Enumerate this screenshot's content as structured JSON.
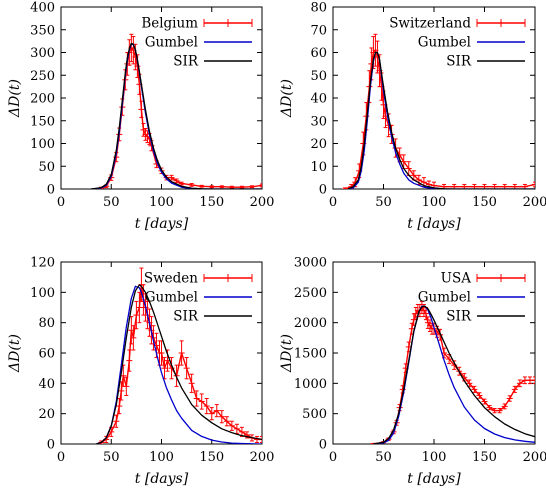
{
  "figure": {
    "xtick_labels": [
      "0",
      "50",
      "100",
      "150",
      "200"
    ]
  },
  "chart_data": [
    {
      "type": "line",
      "xlabel": "t [days]",
      "ylabel": "ΔD(t)",
      "xlim": [
        0,
        200
      ],
      "ylim": [
        0,
        400
      ],
      "xticks": [
        0,
        50,
        100,
        150,
        200
      ],
      "yticks": [
        0,
        50,
        100,
        150,
        200,
        250,
        300,
        350,
        400
      ],
      "ytick_labels": [
        "0",
        "50",
        "100",
        "150",
        "200",
        "250",
        "300",
        "350",
        "400"
      ],
      "legend_position": "top-right",
      "series": [
        {
          "name": "Belgium",
          "kind": "data-errorbars",
          "color": "#ff0000",
          "x": [
            40,
            45,
            50,
            55,
            58,
            61,
            64,
            66,
            68,
            70,
            72,
            74,
            76,
            78,
            80,
            82,
            84,
            86,
            88,
            90,
            95,
            100,
            105,
            110,
            115,
            120,
            130,
            140,
            150,
            160,
            170,
            180,
            190,
            200
          ],
          "y": [
            2,
            6,
            25,
            70,
            120,
            180,
            240,
            275,
            300,
            310,
            305,
            290,
            270,
            230,
            175,
            130,
            120,
            115,
            110,
            95,
            55,
            40,
            25,
            25,
            18,
            12,
            9,
            6,
            5,
            5,
            4,
            4,
            5,
            8
          ],
          "err": [
            2,
            3,
            6,
            10,
            14,
            18,
            22,
            25,
            28,
            30,
            30,
            28,
            25,
            22,
            18,
            14,
            13,
            13,
            12,
            11,
            8,
            6,
            5,
            5,
            4,
            3,
            3,
            2,
            2,
            2,
            2,
            2,
            2,
            3
          ]
        },
        {
          "name": "Gumbel",
          "kind": "curve",
          "color": "#0000cc",
          "x": [
            30,
            40,
            45,
            50,
            55,
            58,
            61,
            64,
            66,
            68,
            70,
            72,
            74,
            76,
            78,
            80,
            84,
            88,
            92,
            96,
            100,
            105,
            110,
            120,
            130,
            140,
            150,
            200
          ],
          "y": [
            0,
            2,
            8,
            28,
            78,
            125,
            185,
            250,
            282,
            305,
            318,
            318,
            305,
            282,
            255,
            225,
            168,
            120,
            83,
            56,
            37,
            22,
            13,
            4,
            1,
            0.3,
            0,
            0
          ]
        },
        {
          "name": "SIR",
          "kind": "curve",
          "color": "#000000",
          "x": [
            30,
            40,
            45,
            50,
            55,
            58,
            61,
            64,
            66,
            68,
            70,
            72,
            74,
            76,
            78,
            80,
            84,
            88,
            92,
            96,
            100,
            105,
            110,
            120,
            130,
            140,
            150,
            200
          ],
          "y": [
            0,
            3,
            10,
            32,
            85,
            135,
            195,
            255,
            288,
            308,
            320,
            318,
            305,
            285,
            258,
            230,
            175,
            127,
            90,
            62,
            42,
            26,
            16,
            6,
            2,
            0.5,
            0,
            0
          ]
        }
      ]
    },
    {
      "type": "line",
      "xlabel": "t [days]",
      "ylabel": "ΔD(t)",
      "xlim": [
        0,
        200
      ],
      "ylim": [
        0,
        80
      ],
      "xticks": [
        0,
        50,
        100,
        150,
        200
      ],
      "yticks": [
        0,
        10,
        20,
        30,
        40,
        50,
        60,
        70,
        80
      ],
      "ytick_labels": [
        "0",
        "10",
        "20",
        "30",
        "40",
        "50",
        "60",
        "70",
        "80"
      ],
      "legend_position": "top-right",
      "series": [
        {
          "name": "Switzerland",
          "kind": "data-errorbars",
          "color": "#ff0000",
          "x": [
            12,
            18,
            22,
            26,
            30,
            33,
            36,
            38,
            40,
            42,
            44,
            46,
            48,
            50,
            52,
            55,
            58,
            62,
            66,
            70,
            75,
            80,
            85,
            90,
            95,
            100,
            110,
            120,
            130,
            140,
            150,
            160,
            170,
            180,
            190,
            200
          ],
          "y": [
            0,
            1,
            3,
            8,
            20,
            32,
            45,
            55,
            60,
            61,
            58,
            52,
            45,
            37,
            32,
            28,
            24,
            18,
            15,
            12,
            9,
            6,
            4,
            3,
            2,
            1.5,
            1,
            1,
            1,
            1,
            1,
            1,
            1,
            1,
            1,
            2
          ],
          "err": [
            0.5,
            1,
            2,
            3,
            5,
            6,
            7,
            7,
            7,
            7,
            7,
            7,
            6,
            6,
            5,
            5,
            4,
            4,
            3,
            3,
            3,
            2,
            2,
            2,
            1.5,
            1.5,
            1,
            1,
            1,
            1,
            1,
            1,
            1,
            1,
            1,
            1
          ]
        },
        {
          "name": "Gumbel",
          "kind": "curve",
          "color": "#0000cc",
          "x": [
            15,
            20,
            25,
            28,
            31,
            34,
            37,
            40,
            42,
            44,
            46,
            48,
            50,
            54,
            58,
            62,
            66,
            70,
            75,
            80,
            90,
            100,
            110,
            120,
            200
          ],
          "y": [
            0,
            0.5,
            3,
            8,
            17,
            30,
            45,
            56,
            60,
            60,
            57,
            50,
            43,
            32,
            23,
            16,
            11,
            7,
            4,
            2.5,
            0.8,
            0.2,
            0,
            0,
            0
          ]
        },
        {
          "name": "SIR",
          "kind": "curve",
          "color": "#000000",
          "x": [
            15,
            20,
            25,
            28,
            31,
            34,
            37,
            40,
            42,
            44,
            46,
            48,
            50,
            54,
            58,
            62,
            66,
            70,
            75,
            80,
            90,
            100,
            110,
            120,
            200
          ],
          "y": [
            0,
            1,
            4,
            10,
            20,
            33,
            47,
            57,
            60,
            60,
            57,
            51,
            45,
            34,
            25,
            18,
            13,
            9,
            6,
            4,
            1.5,
            0.5,
            0.1,
            0,
            0
          ]
        }
      ]
    },
    {
      "type": "line",
      "xlabel": "t [days]",
      "ylabel": "ΔD(t)",
      "xlim": [
        0,
        200
      ],
      "ylim": [
        0,
        120
      ],
      "xticks": [
        0,
        50,
        100,
        150,
        200
      ],
      "yticks": [
        0,
        20,
        40,
        60,
        80,
        100,
        120
      ],
      "ytick_labels": [
        "0",
        "20",
        "40",
        "60",
        "80",
        "100",
        "120"
      ],
      "legend_position": "top-right",
      "series": [
        {
          "name": "Sweden",
          "kind": "data-errorbars",
          "color": "#ff0000",
          "x": [
            40,
            45,
            50,
            55,
            58,
            60,
            62,
            65,
            68,
            70,
            72,
            75,
            78,
            80,
            82,
            84,
            86,
            88,
            90,
            92,
            95,
            98,
            100,
            103,
            106,
            110,
            115,
            120,
            125,
            130,
            135,
            140,
            145,
            150,
            155,
            160,
            165,
            170,
            175,
            180,
            185,
            190,
            195,
            200
          ],
          "y": [
            1,
            3,
            8,
            15,
            25,
            35,
            45,
            38,
            55,
            75,
            70,
            85,
            90,
            105,
            95,
            90,
            85,
            80,
            75,
            70,
            65,
            60,
            60,
            50,
            55,
            50,
            45,
            60,
            50,
            40,
            30,
            28,
            25,
            20,
            22,
            18,
            15,
            12,
            10,
            8,
            6,
            4,
            3,
            3
          ],
          "err": [
            1,
            2,
            3,
            4,
            5,
            6,
            7,
            6,
            7,
            9,
            8,
            9,
            10,
            11,
            10,
            9,
            9,
            9,
            9,
            8,
            8,
            8,
            8,
            7,
            7,
            7,
            7,
            8,
            7,
            6,
            5,
            5,
            5,
            4,
            4,
            4,
            3,
            3,
            3,
            3,
            2,
            2,
            2,
            2
          ]
        },
        {
          "name": "Gumbel",
          "kind": "curve",
          "color": "#0000cc",
          "x": [
            35,
            40,
            45,
            50,
            55,
            60,
            65,
            70,
            74,
            78,
            80,
            84,
            88,
            92,
            96,
            100,
            105,
            110,
            115,
            120,
            130,
            140,
            150,
            160,
            170,
            180,
            190,
            200
          ],
          "y": [
            0,
            1,
            4,
            12,
            28,
            52,
            77,
            96,
            104,
            103,
            100,
            91,
            80,
            68,
            57,
            47,
            37,
            29,
            22,
            17,
            9,
            5,
            2.6,
            1.3,
            0.6,
            0.3,
            0.1,
            0
          ]
        },
        {
          "name": "SIR",
          "kind": "curve",
          "color": "#000000",
          "x": [
            35,
            40,
            45,
            50,
            55,
            60,
            65,
            70,
            74,
            78,
            80,
            84,
            88,
            92,
            96,
            100,
            105,
            110,
            115,
            120,
            130,
            140,
            150,
            160,
            170,
            180,
            190,
            200
          ],
          "y": [
            0,
            1,
            4,
            12,
            26,
            47,
            70,
            90,
            101,
            105,
            104,
            100,
            94,
            87,
            79,
            71,
            61,
            52,
            44,
            37,
            26,
            19,
            14,
            10,
            7.5,
            5.5,
            4.2,
            3
          ]
        }
      ]
    },
    {
      "type": "line",
      "xlabel": "t [days]",
      "ylabel": "ΔD(t)",
      "xlim": [
        0,
        200
      ],
      "ylim": [
        0,
        3000
      ],
      "xticks": [
        0,
        50,
        100,
        150,
        200
      ],
      "yticks": [
        0,
        500,
        1000,
        1500,
        2000,
        2500,
        3000
      ],
      "ytick_labels": [
        "0",
        "500",
        "1000",
        "1500",
        "2000",
        "2500",
        "3000"
      ],
      "legend_position": "top-right",
      "series": [
        {
          "name": "USA",
          "kind": "data-errorbars",
          "color": "#ff0000",
          "x": [
            40,
            45,
            50,
            55,
            60,
            63,
            66,
            69,
            72,
            75,
            78,
            80,
            82,
            84,
            86,
            88,
            90,
            92,
            94,
            96,
            98,
            100,
            103,
            106,
            110,
            115,
            120,
            125,
            130,
            135,
            140,
            145,
            150,
            155,
            160,
            165,
            170,
            175,
            180,
            185,
            190,
            195,
            200
          ],
          "y": [
            5,
            10,
            30,
            80,
            200,
            350,
            600,
            900,
            1250,
            1600,
            1900,
            2050,
            2150,
            2200,
            2200,
            2250,
            2200,
            2150,
            2000,
            1950,
            1900,
            1900,
            1850,
            1800,
            1500,
            1400,
            1300,
            1200,
            1100,
            1000,
            900,
            800,
            700,
            600,
            550,
            550,
            620,
            750,
            900,
            1000,
            1050,
            1050,
            1050
          ],
          "err": [
            5,
            6,
            10,
            20,
            30,
            40,
            50,
            60,
            70,
            80,
            90,
            95,
            100,
            100,
            100,
            100,
            100,
            100,
            95,
            95,
            90,
            90,
            90,
            90,
            80,
            75,
            70,
            65,
            60,
            55,
            50,
            45,
            40,
            35,
            35,
            35,
            40,
            45,
            50,
            55,
            55,
            55,
            55
          ]
        },
        {
          "name": "Gumbel",
          "kind": "curve",
          "color": "#0000cc",
          "x": [
            40,
            50,
            55,
            60,
            65,
            70,
            75,
            80,
            85,
            88,
            91,
            94,
            97,
            100,
            105,
            110,
            115,
            120,
            130,
            140,
            150,
            160,
            170,
            180,
            190,
            200
          ],
          "y": [
            0,
            20,
            60,
            180,
            450,
            850,
            1350,
            1850,
            2180,
            2270,
            2270,
            2210,
            2080,
            1920,
            1650,
            1380,
            1140,
            930,
            610,
            395,
            255,
            165,
            105,
            68,
            44,
            28
          ]
        },
        {
          "name": "SIR",
          "kind": "curve",
          "color": "#000000",
          "x": [
            40,
            50,
            55,
            60,
            65,
            70,
            75,
            80,
            85,
            88,
            91,
            94,
            97,
            100,
            105,
            110,
            115,
            120,
            130,
            140,
            150,
            160,
            170,
            180,
            190,
            200
          ],
          "y": [
            0,
            30,
            90,
            230,
            500,
            900,
            1380,
            1860,
            2180,
            2260,
            2270,
            2230,
            2140,
            2040,
            1860,
            1680,
            1500,
            1340,
            1040,
            800,
            600,
            450,
            330,
            240,
            170,
            120
          ]
        }
      ]
    }
  ]
}
